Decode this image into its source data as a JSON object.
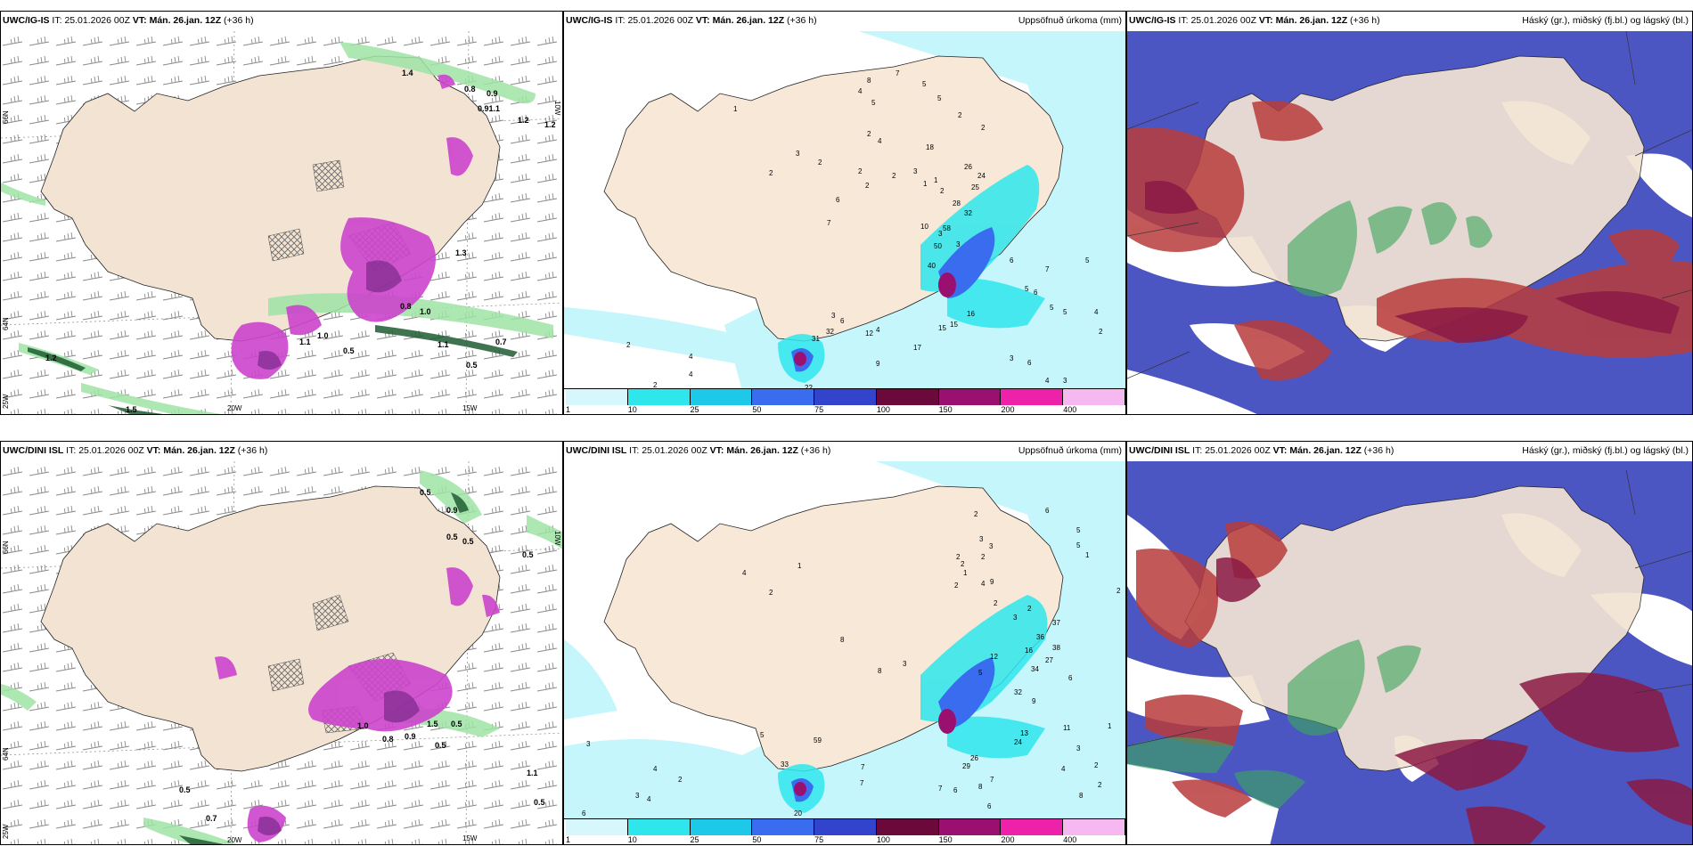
{
  "panels": [
    {
      "id": "p1",
      "model": "UWC/IG-IS",
      "it_label": "IT:",
      "it": "25.01.2026 00Z",
      "vt_label": "VT:",
      "vt": "Mán. 26.jan. 12Z",
      "lead": "(+36 h)",
      "right": ""
    },
    {
      "id": "p2",
      "model": "UWC/IG-IS",
      "it_label": "IT:",
      "it": "25.01.2026 00Z",
      "vt_label": "VT:",
      "vt": "Mán. 26.jan. 12Z",
      "lead": "(+36 h)",
      "right": "Uppsöfnuð úrkoma (mm)"
    },
    {
      "id": "p3",
      "model": "UWC/IG-IS",
      "it_label": "IT:",
      "it": "25.01.2026 00Z",
      "vt_label": "VT:",
      "vt": "Mán. 26.jan. 12Z",
      "lead": "(+36 h)",
      "right": "Háský (gr.), miðský (fj.bl.) og lágský (bl.)"
    },
    {
      "id": "p4",
      "model": "UWC/DINI ISL",
      "it_label": "IT:",
      "it": "25.01.2026 00Z",
      "vt_label": "VT:",
      "vt": "Mán. 26.jan. 12Z",
      "lead": "(+36 h)",
      "right": ""
    },
    {
      "id": "p5",
      "model": "UWC/DINI ISL",
      "it_label": "IT:",
      "it": "25.01.2026 00Z",
      "vt_label": "VT:",
      "vt": "Mán. 26.jan. 12Z",
      "lead": "(+36 h)",
      "right": "Uppsöfnuð úrkoma (mm)"
    },
    {
      "id": "p6",
      "model": "UWC/DINI ISL",
      "it_label": "IT:",
      "it": "25.01.2026 00Z",
      "vt_label": "VT:",
      "vt": "Mán. 26.jan. 12Z",
      "lead": "(+36 h)",
      "right": "Háský (gr.), miðský (fj.bl.) og lágský (bl.)"
    }
  ],
  "colorbar": {
    "labels": [
      "1",
      "10",
      "25",
      "50",
      "75",
      "100",
      "150",
      "200",
      "400"
    ],
    "colors": [
      "#d6f7fb",
      "#2ee6ec",
      "#1ec8e8",
      "#3a6cf0",
      "#3344cc",
      "#6b0a3a",
      "#9a1070",
      "#ee22aa",
      "#f6b8f0"
    ]
  },
  "axes": {
    "lat_66": "66N",
    "lat_64": "64N",
    "lat_25w": "25W",
    "lon_20w": "20W",
    "lon_15w": "15W",
    "lon_10w": "10W"
  },
  "precip_ig": [
    "1",
    "3",
    "2",
    "2",
    "6",
    "7",
    "8",
    "4",
    "5",
    "7",
    "5",
    "5",
    "2",
    "4",
    "2",
    "2",
    "2",
    "3",
    "18",
    "1",
    "1",
    "2",
    "2",
    "2",
    "26",
    "24",
    "25",
    "28",
    "32",
    "3",
    "10",
    "58",
    "50",
    "3",
    "6",
    "7",
    "40",
    "5",
    "6",
    "16",
    "5",
    "5",
    "4",
    "17",
    "15",
    "15",
    "3",
    "9",
    "12",
    "6",
    "4",
    "3",
    "32",
    "31",
    "5",
    "2",
    "4",
    "4",
    "2",
    "22",
    "6",
    "4",
    "3",
    "2"
  ],
  "precip_dini": [
    "2",
    "6",
    "5",
    "3",
    "1",
    "2",
    "5",
    "2",
    "3",
    "1",
    "2",
    "4",
    "2",
    "2",
    "2",
    "9",
    "4",
    "2",
    "1",
    "8",
    "37",
    "3",
    "36",
    "16",
    "38",
    "27",
    "34",
    "5",
    "12",
    "8",
    "32",
    "9",
    "6",
    "11",
    "24",
    "13",
    "26",
    "29",
    "7",
    "6",
    "8",
    "7",
    "6",
    "5",
    "59",
    "33",
    "20",
    "3",
    "3",
    "2",
    "4",
    "6",
    "4",
    "7",
    "7",
    "8",
    "2",
    "4",
    "3",
    "2",
    "1",
    "3",
    "2"
  ],
  "contour_ig": [
    "1.4",
    "0.8",
    "0.9",
    "0.91.1",
    "1.2",
    "1.2",
    "0.8",
    "1.0",
    "1.0",
    "1.3",
    "0.5",
    "1.1",
    "0.7",
    "0.5",
    "1.5",
    "1.2",
    "1.1"
  ],
  "contour_dini": [
    "0.5",
    "0.9",
    "0.5",
    "0.5",
    "0.5",
    "0.9",
    "0.8",
    "1.5",
    "0.5",
    "0.5",
    "1.1",
    "0.5",
    "0.5",
    "0.7",
    "1.0"
  ]
}
